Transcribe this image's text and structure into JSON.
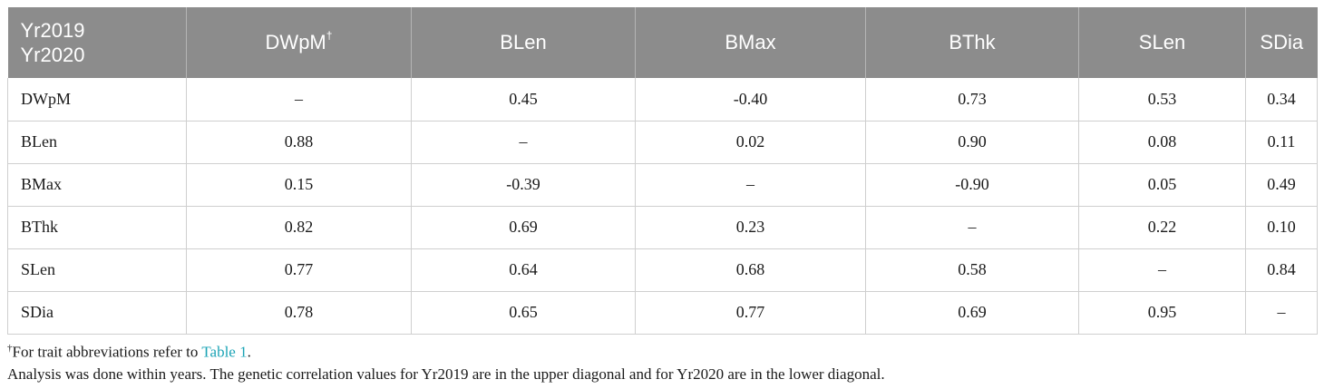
{
  "table": {
    "corner": {
      "line1": "Yr2019",
      "line2": "Yr2020"
    },
    "columns": [
      {
        "label": "DWpM",
        "sup": "†"
      },
      {
        "label": "BLen",
        "sup": ""
      },
      {
        "label": "BMax",
        "sup": ""
      },
      {
        "label": "BThk",
        "sup": ""
      },
      {
        "label": "SLen",
        "sup": ""
      },
      {
        "label": "SDia",
        "sup": ""
      }
    ],
    "rows": [
      {
        "label": "DWpM",
        "cells": [
          "–",
          "0.45",
          "-0.40",
          "0.73",
          "0.53",
          "0.34"
        ]
      },
      {
        "label": "BLen",
        "cells": [
          "0.88",
          "–",
          "0.02",
          "0.90",
          "0.08",
          "0.11"
        ]
      },
      {
        "label": "BMax",
        "cells": [
          "0.15",
          "-0.39",
          "–",
          "-0.90",
          "0.05",
          "0.49"
        ]
      },
      {
        "label": "BThk",
        "cells": [
          "0.82",
          "0.69",
          "0.23",
          "–",
          "0.22",
          "0.10"
        ]
      },
      {
        "label": "SLen",
        "cells": [
          "0.77",
          "0.64",
          "0.68",
          "0.58",
          "–",
          "0.84"
        ]
      },
      {
        "label": "SDia",
        "cells": [
          "0.78",
          "0.65",
          "0.77",
          "0.69",
          "0.95",
          "–"
        ]
      }
    ]
  },
  "footnotes": {
    "note1_sup": "†",
    "note1_text": "For trait abbreviations refer to ",
    "note1_link": "Table 1",
    "note1_end": ".",
    "note2": "Analysis was done within years. The genetic correlation values for Yr2019 are in the upper diagonal and for Yr2020 are in the lower diagonal."
  },
  "colors": {
    "header_bg": "#8c8c8c",
    "header_text": "#ffffff",
    "link": "#1aa3b5"
  }
}
